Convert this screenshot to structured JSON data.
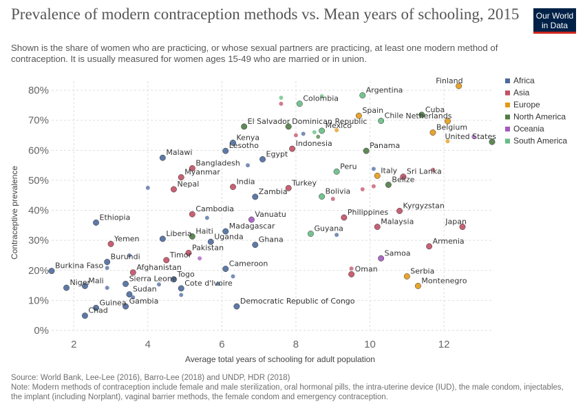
{
  "title": "Prevalence of modern contraception methods vs. Mean years of schooling, 2015",
  "subtitle": "Shown is the share of women who are practicing, or whose sexual partners are practicing, at least one modern method of contraception. It is usually measured for women ages 15-49 who are married or in union.",
  "logo": {
    "line1": "Our World",
    "line2": "in Data",
    "bg": "#002147",
    "accent": "#ce261e"
  },
  "source": "Source: World Bank, Lee-Lee (2016), Barro-Lee (2018) and UNDP, HDR (2018)",
  "note": "Note: Modern methods of contraception include female and male sterilization, oral hormonal pills, the intra-uterine device (IUD), the male condom, injectables, the implant (including Norplant), vaginal barrier methods, the female condom and emergency contraception.",
  "chart_data": {
    "type": "scatter",
    "xlabel": "Average total years of schooling for adult population",
    "ylabel": "Contraceptive prevalence",
    "xlim": [
      1.4,
      13.3
    ],
    "ylim": [
      0,
      83
    ],
    "xticks": [
      2,
      4,
      6,
      8,
      10,
      12
    ],
    "yticks": [
      0,
      10,
      20,
      30,
      40,
      50,
      60,
      70,
      80
    ],
    "ytick_labels": [
      "0%",
      "10%",
      "20%",
      "30%",
      "40%",
      "50%",
      "60%",
      "70%",
      "80%"
    ],
    "grid": "horizontal dashed",
    "legend_position": "right",
    "series": [
      {
        "name": "Africa",
        "color": "#4c6a9c",
        "points": [
          {
            "label": "Burkina Faso",
            "x": 1.4,
            "y": 19.8
          },
          {
            "label": "Niger",
            "x": 1.8,
            "y": 14.2
          },
          {
            "label": "Mali",
            "x": 2.3,
            "y": 14.8
          },
          {
            "label": "Chad",
            "x": 2.3,
            "y": 4.9
          },
          {
            "label": "Guinea",
            "x": 2.6,
            "y": 7.5
          },
          {
            "label": "Ethiopia",
            "x": 2.6,
            "y": 35.9
          },
          {
            "label": "Burundi",
            "x": 2.9,
            "y": 22.8
          },
          {
            "label": "",
            "x": 2.9,
            "y": 20.8
          },
          {
            "label": "",
            "x": 2.9,
            "y": 14.2
          },
          {
            "label": "Gambia",
            "x": 3.4,
            "y": 8.0
          },
          {
            "label": "Sierra Leone",
            "x": 3.4,
            "y": 15.5
          },
          {
            "label": "",
            "x": 3.5,
            "y": 25.0
          },
          {
            "label": "Sudan",
            "x": 3.5,
            "y": 12.0
          },
          {
            "label": "",
            "x": 3.6,
            "y": 11.0
          },
          {
            "label": "",
            "x": 4.0,
            "y": 47.5
          },
          {
            "label": "",
            "x": 4.3,
            "y": 15.3
          },
          {
            "label": "Malawi",
            "x": 4.4,
            "y": 57.5
          },
          {
            "label": "Liberia",
            "x": 4.4,
            "y": 30.5
          },
          {
            "label": "Togo",
            "x": 4.7,
            "y": 17.0
          },
          {
            "label": "Cote d'Ivoire",
            "x": 4.9,
            "y": 14.0
          },
          {
            "label": "",
            "x": 4.9,
            "y": 11.8
          },
          {
            "label": "",
            "x": 5.6,
            "y": 37.5
          },
          {
            "label": "Uganda",
            "x": 5.7,
            "y": 29.5
          },
          {
            "label": "",
            "x": 5.9,
            "y": 15.5
          },
          {
            "label": "Madagascar",
            "x": 6.1,
            "y": 33.0
          },
          {
            "label": "Cameroon",
            "x": 6.1,
            "y": 20.5
          },
          {
            "label": "Democratic Republic of Congo",
            "x": 6.4,
            "y": 8.0
          },
          {
            "label": "",
            "x": 6.3,
            "y": 18.0
          },
          {
            "label": "Lesotho",
            "x": 6.1,
            "y": 59.8
          },
          {
            "label": "Kenya",
            "x": 6.3,
            "y": 62.5
          },
          {
            "label": "",
            "x": 6.7,
            "y": 55.0
          },
          {
            "label": "Zambia",
            "x": 6.9,
            "y": 44.5
          },
          {
            "label": "Ghana",
            "x": 6.9,
            "y": 28.5
          },
          {
            "label": "Egypt",
            "x": 7.1,
            "y": 57.0
          },
          {
            "label": "",
            "x": 8.2,
            "y": 65.5
          },
          {
            "label": "",
            "x": 9.1,
            "y": 31.8
          },
          {
            "label": "",
            "x": 10.1,
            "y": 53.8
          }
        ]
      },
      {
        "name": "Asia",
        "color": "#c15065",
        "points": [
          {
            "label": "Yemen",
            "x": 3.0,
            "y": 28.8
          },
          {
            "label": "Afghanistan",
            "x": 3.6,
            "y": 19.3
          },
          {
            "label": "Timor",
            "x": 4.5,
            "y": 23.4
          },
          {
            "label": "Nepal",
            "x": 4.7,
            "y": 47.0
          },
          {
            "label": "Myanmar",
            "x": 4.9,
            "y": 51.0
          },
          {
            "label": "Bangladesh",
            "x": 5.2,
            "y": 54.0
          },
          {
            "label": "Cambodia",
            "x": 5.2,
            "y": 38.7
          },
          {
            "label": "Pakistan",
            "x": 5.1,
            "y": 25.8
          },
          {
            "label": "India",
            "x": 6.3,
            "y": 47.8
          },
          {
            "label": "",
            "x": 7.6,
            "y": 75.5
          },
          {
            "label": "Turkey",
            "x": 7.8,
            "y": 47.4
          },
          {
            "label": "Indonesia",
            "x": 7.9,
            "y": 60.5
          },
          {
            "label": "",
            "x": 8.0,
            "y": 65.0
          },
          {
            "label": "",
            "x": 9.0,
            "y": 43.8
          },
          {
            "label": "Philippines",
            "x": 9.3,
            "y": 37.6
          },
          {
            "label": "Oman",
            "x": 9.5,
            "y": 18.7
          },
          {
            "label": "",
            "x": 9.5,
            "y": 20.6
          },
          {
            "label": "",
            "x": 9.8,
            "y": 47.0
          },
          {
            "label": "",
            "x": 10.1,
            "y": 48.0
          },
          {
            "label": "Malaysia",
            "x": 10.2,
            "y": 34.5
          },
          {
            "label": "Kyrgyzstan",
            "x": 10.8,
            "y": 39.8
          },
          {
            "label": "Sri Lanka",
            "x": 10.9,
            "y": 51.2
          },
          {
            "label": "Armenia",
            "x": 11.6,
            "y": 28.0
          },
          {
            "label": "",
            "x": 11.7,
            "y": 53.5
          },
          {
            "label": "Japan",
            "x": 12.5,
            "y": 34.5
          }
        ]
      },
      {
        "name": "Europe",
        "color": "#e49a17",
        "points": [
          {
            "label": "Spain",
            "x": 9.7,
            "y": 71.5
          },
          {
            "label": "",
            "x": 9.1,
            "y": 66.7
          },
          {
            "label": "Italy",
            "x": 10.2,
            "y": 51.5
          },
          {
            "label": "Serbia",
            "x": 11.0,
            "y": 18.0
          },
          {
            "label": "Montenegro",
            "x": 11.3,
            "y": 14.8
          },
          {
            "label": "Belgium",
            "x": 11.7,
            "y": 65.9
          },
          {
            "label": "Netherlands",
            "x": 12.1,
            "y": 69.7
          },
          {
            "label": "",
            "x": 12.1,
            "y": 63.0
          },
          {
            "label": "Finland",
            "x": 12.4,
            "y": 81.4
          }
        ]
      },
      {
        "name": "North America",
        "color": "#4f7c45",
        "points": [
          {
            "label": "Haiti",
            "x": 5.2,
            "y": 31.3
          },
          {
            "label": "El Salvador",
            "x": 6.6,
            "y": 67.9
          },
          {
            "label": "Dominican Republic",
            "x": 7.8,
            "y": 67.9
          },
          {
            "label": "",
            "x": 8.6,
            "y": 64.5
          },
          {
            "label": "Panama",
            "x": 9.9,
            "y": 59.8
          },
          {
            "label": "Belize",
            "x": 10.5,
            "y": 48.5
          },
          {
            "label": "Cuba",
            "x": 11.4,
            "y": 71.8
          },
          {
            "label": "United States",
            "x": 13.3,
            "y": 62.8
          }
        ]
      },
      {
        "name": "Oceania",
        "color": "#a35abb",
        "points": [
          {
            "label": "Vanuatu",
            "x": 6.8,
            "y": 36.9
          },
          {
            "label": "",
            "x": 5.4,
            "y": 24.0
          },
          {
            "label": "Samoa",
            "x": 10.3,
            "y": 24.0
          },
          {
            "label": "",
            "x": 12.8,
            "y": 64.5
          }
        ]
      },
      {
        "name": "South America",
        "color": "#66bd83",
        "points": [
          {
            "label": "",
            "x": 7.6,
            "y": 77.5
          },
          {
            "label": "Colombia",
            "x": 8.1,
            "y": 75.5
          },
          {
            "label": "",
            "x": 8.5,
            "y": 66.0
          },
          {
            "label": "Mexico",
            "x": 8.7,
            "y": 66.5
          },
          {
            "label": "",
            "x": 8.7,
            "y": 78.0
          },
          {
            "label": "Bolivia",
            "x": 8.7,
            "y": 44.6
          },
          {
            "label": "Guyana",
            "x": 8.4,
            "y": 32.2
          },
          {
            "label": "Peru",
            "x": 9.1,
            "y": 52.9
          },
          {
            "label": "Argentina",
            "x": 9.8,
            "y": 78.3
          },
          {
            "label": "Chile",
            "x": 10.3,
            "y": 69.8
          }
        ]
      }
    ]
  }
}
